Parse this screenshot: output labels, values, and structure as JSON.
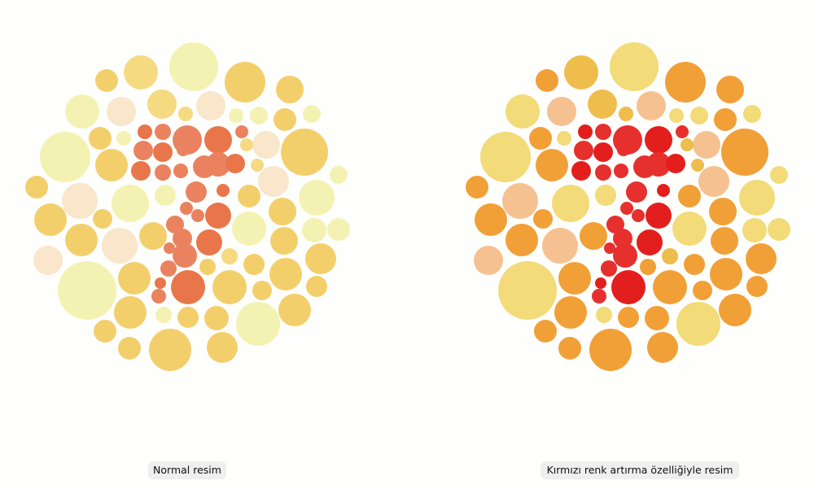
{
  "captions": {
    "normal": "Normal resim",
    "enhanced": "Kırmızı renk artırma özelliğiyle resim"
  }
}
